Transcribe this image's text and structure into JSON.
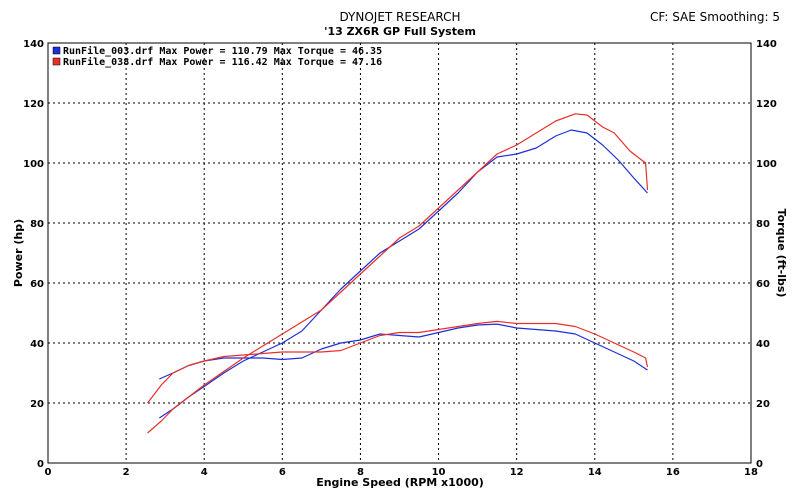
{
  "chart_data": {
    "type": "line",
    "title": "DYNOJET RESEARCH",
    "subtitle": "'13 ZX6R GP Full System",
    "corner_text": "CF: SAE  Smoothing: 5",
    "xlabel": "Engine Speed (RPM x1000)",
    "ylabel_left": "Power (hp)",
    "ylabel_right": "Torque (ft-lbs)",
    "xlim": [
      0,
      18
    ],
    "ylim": [
      0,
      140
    ],
    "x_ticks": [
      "0",
      "2",
      "4",
      "6",
      "8",
      "10",
      "12",
      "14",
      "16",
      "18"
    ],
    "y_ticks": [
      "0",
      "20",
      "40",
      "60",
      "80",
      "100",
      "120",
      "140"
    ],
    "grid": true,
    "legend_position": "top-left",
    "legend": [
      {
        "label": "RunFile_003.drf Max Power = 110.79     Max Torque = 46.35",
        "color": "#1f2fd8"
      },
      {
        "label": "RunFile_038.drf Max Power = 116.42     Max Torque = 47.16",
        "color": "#e8302a"
      }
    ],
    "series": [
      {
        "file": "RunFile_003.drf",
        "measure": "power",
        "color": "#1f2fd8",
        "x": [
          2.85,
          3.2,
          3.6,
          4.0,
          4.5,
          5.0,
          5.5,
          6.0,
          6.5,
          7.0,
          7.5,
          8.0,
          8.5,
          9.0,
          9.5,
          10.0,
          10.5,
          11.0,
          11.5,
          12.0,
          12.5,
          13.0,
          13.4,
          13.8,
          14.2,
          14.6,
          15.0,
          15.35
        ],
        "values": [
          15,
          18,
          22,
          25.5,
          30,
          34,
          37,
          40,
          44,
          51,
          58,
          64,
          70,
          74,
          78,
          84,
          90,
          97,
          102,
          103,
          105,
          109,
          111,
          110,
          106,
          101,
          95,
          90
        ]
      },
      {
        "file": "RunFile_003.drf",
        "measure": "torque",
        "color": "#1f2fd8",
        "x": [
          2.85,
          3.2,
          3.6,
          4.0,
          4.5,
          5.0,
          5.5,
          6.0,
          6.5,
          7.0,
          7.5,
          8.0,
          8.5,
          9.0,
          9.5,
          10.0,
          10.5,
          11.0,
          11.5,
          12.0,
          12.5,
          13.0,
          13.5,
          14.0,
          14.5,
          15.0,
          15.35
        ],
        "values": [
          28,
          30,
          32.5,
          34,
          35,
          35,
          35,
          34.5,
          35,
          38,
          40,
          41,
          43,
          42.5,
          42,
          43.5,
          45,
          46,
          46.3,
          45,
          44.5,
          44,
          43,
          40,
          37,
          34,
          31
        ]
      },
      {
        "file": "RunFile_038.drf",
        "measure": "power",
        "color": "#e8302a",
        "x": [
          2.55,
          2.9,
          3.2,
          3.6,
          4.0,
          4.5,
          5.0,
          5.5,
          6.0,
          6.5,
          7.0,
          7.5,
          8.0,
          8.5,
          9.0,
          9.5,
          10.0,
          10.5,
          11.0,
          11.5,
          12.0,
          12.5,
          13.0,
          13.5,
          13.8,
          14.2,
          14.5,
          14.9,
          15.2,
          15.3,
          15.35
        ],
        "values": [
          10,
          14,
          18,
          22,
          26,
          30.5,
          35,
          39,
          43,
          47,
          51,
          57,
          63,
          69,
          75,
          79,
          85,
          91,
          97,
          103,
          106,
          110,
          114,
          116.4,
          116,
          112,
          110,
          104,
          101,
          100,
          91
        ]
      },
      {
        "file": "RunFile_038.drf",
        "measure": "torque",
        "color": "#e8302a",
        "x": [
          2.55,
          2.9,
          3.2,
          3.6,
          4.0,
          4.5,
          5.0,
          5.5,
          6.0,
          6.5,
          7.0,
          7.5,
          8.0,
          8.5,
          9.0,
          9.5,
          10.0,
          10.5,
          11.0,
          11.5,
          12.0,
          12.5,
          13.0,
          13.5,
          14.0,
          14.5,
          15.0,
          15.3,
          15.35
        ],
        "values": [
          20,
          26,
          30,
          32.5,
          34,
          35.5,
          36,
          36.5,
          37,
          37,
          37,
          37.5,
          40,
          42.5,
          43.5,
          43.5,
          44.5,
          45.5,
          46.5,
          47.2,
          46.5,
          46.5,
          46.5,
          45.5,
          43,
          40,
          37,
          35,
          32
        ]
      }
    ]
  }
}
